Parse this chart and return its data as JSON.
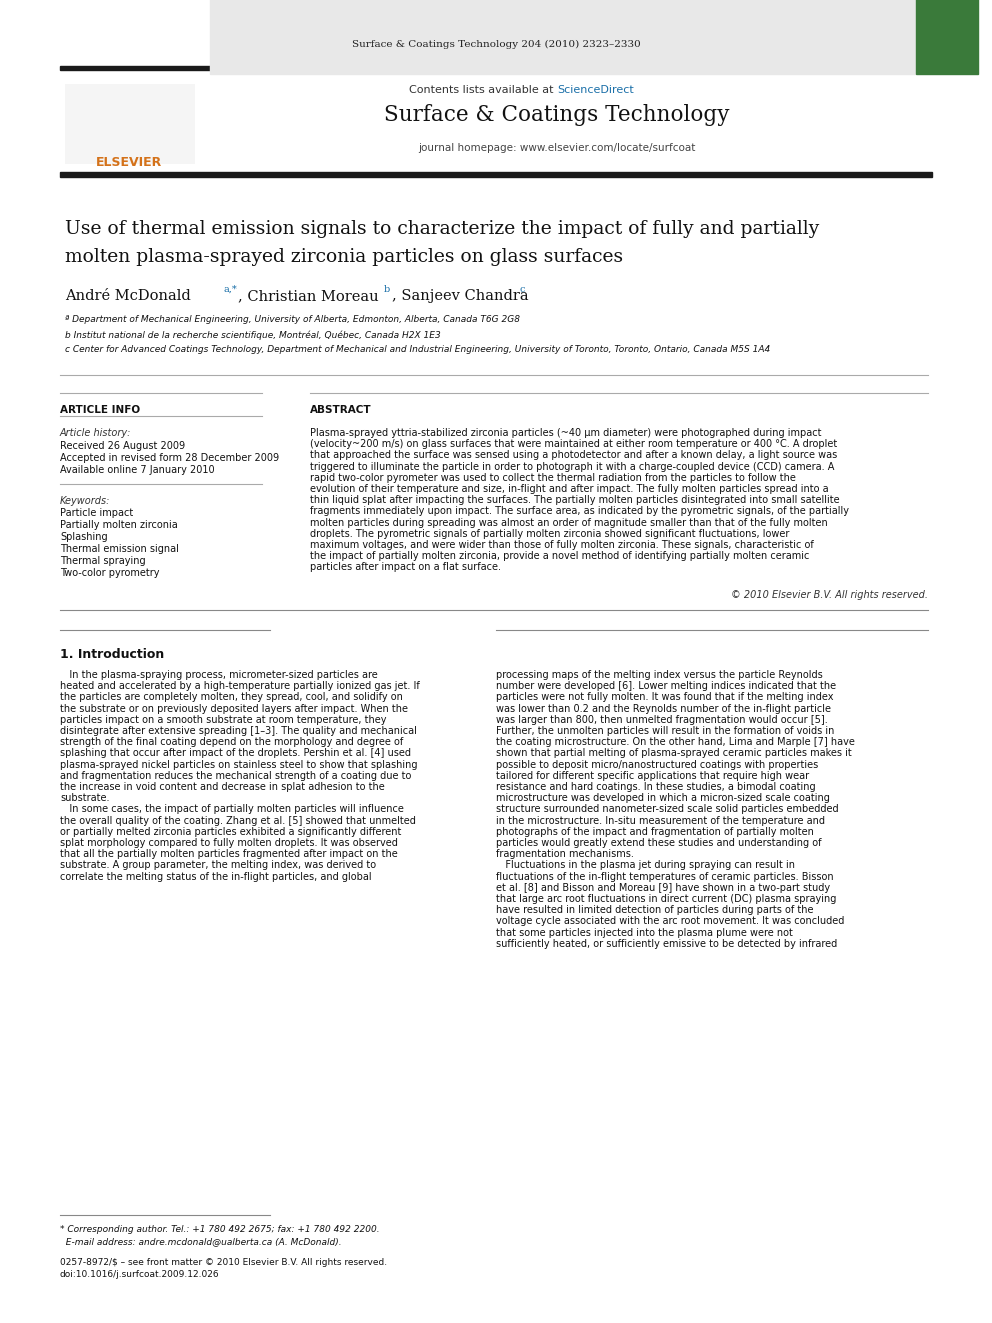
{
  "page_width": 9.92,
  "page_height": 13.23,
  "bg_color": "#ffffff",
  "header_journal_line": "Surface & Coatings Technology 204 (2010) 2323–2330",
  "journal_name": "Surface & Coatings Technology",
  "journal_homepage": "journal homepage: www.elsevier.com/locate/surfcoat",
  "contents_line": "Contents lists available at ScienceDirect",
  "header_band_color": "#e8e8e8",
  "header_band_color2": "#3a7a3a",
  "title_line1": "Use of thermal emission signals to characterize the impact of fully and partially",
  "title_line2": "molten plasma-sprayed zirconia particles on glass surfaces",
  "affil_a": "ª Department of Mechanical Engineering, University of Alberta, Edmonton, Alberta, Canada T6G 2G8",
  "affil_b": "b Institut national de la recherche scientifique, Montréal, Québec, Canada H2X 1E3",
  "affil_c": "c Center for Advanced Coatings Technology, Department of Mechanical and Industrial Engineering, University of Toronto, Toronto, Ontario, Canada M5S 1A4",
  "article_info_header": "ARTICLE INFO",
  "article_history_header": "Article history:",
  "received": "Received 26 August 2009",
  "accepted": "Accepted in revised form 28 December 2009",
  "available": "Available online 7 January 2010",
  "keywords_header": "Keywords:",
  "keywords": [
    "Particle impact",
    "Partially molten zirconia",
    "Splashing",
    "Thermal emission signal",
    "Thermal spraying",
    "Two-color pyrometry"
  ],
  "abstract_header": "ABSTRACT",
  "abstract_text": "Plasma-sprayed yttria-stabilized zirconia particles (~40 μm diameter) were photographed during impact\n(velocity~200 m/s) on glass surfaces that were maintained at either room temperature or 400 °C. A droplet\nthat approached the surface was sensed using a photodetector and after a known delay, a light source was\ntriggered to illuminate the particle in order to photograph it with a charge-coupled device (CCD) camera. A\nrapid two-color pyrometer was used to collect the thermal radiation from the particles to follow the\nevolution of their temperature and size, in-flight and after impact. The fully molten particles spread into a\nthin liquid splat after impacting the surfaces. The partially molten particles disintegrated into small satellite\nfragments immediately upon impact. The surface area, as indicated by the pyrometric signals, of the partially\nmolten particles during spreading was almost an order of magnitude smaller than that of the fully molten\ndroplets. The pyrometric signals of partially molten zirconia showed significant fluctuations, lower\nmaximum voltages, and were wider than those of fully molten zirconia. These signals, characteristic of\nthe impact of partially molten zirconia, provide a novel method of identifying partially molten ceramic\nparticles after impact on a flat surface.",
  "copyright": "© 2010 Elsevier B.V. All rights reserved.",
  "intro_header": "1. Introduction",
  "intro_col1": "   In the plasma-spraying process, micrometer-sized particles are\nheated and accelerated by a high-temperature partially ionized gas jet. If\nthe particles are completely molten, they spread, cool, and solidify on\nthe substrate or on previously deposited layers after impact. When the\nparticles impact on a smooth substrate at room temperature, they\ndisintegrate after extensive spreading [1–3]. The quality and mechanical\nstrength of the final coating depend on the morphology and degree of\nsplashing that occur after impact of the droplets. Pershin et al. [4] used\nplasma-sprayed nickel particles on stainless steel to show that splashing\nand fragmentation reduces the mechanical strength of a coating due to\nthe increase in void content and decrease in splat adhesion to the\nsubstrate.\n   In some cases, the impact of partially molten particles will influence\nthe overall quality of the coating. Zhang et al. [5] showed that unmelted\nor partially melted zirconia particles exhibited a significantly different\nsplat morphology compared to fully molten droplets. It was observed\nthat all the partially molten particles fragmented after impact on the\nsubstrate. A group parameter, the melting index, was derived to\ncorrelate the melting status of the in-flight particles, and global",
  "intro_col2": "processing maps of the melting index versus the particle Reynolds\nnumber were developed [6]. Lower melting indices indicated that the\nparticles were not fully molten. It was found that if the melting index\nwas lower than 0.2 and the Reynolds number of the in-flight particle\nwas larger than 800, then unmelted fragmentation would occur [5].\nFurther, the unmolten particles will result in the formation of voids in\nthe coating microstructure. On the other hand, Lima and Marple [7] have\nshown that partial melting of plasma-sprayed ceramic particles makes it\npossible to deposit micro/nanostructured coatings with properties\ntailored for different specific applications that require high wear\nresistance and hard coatings. In these studies, a bimodal coating\nmicrostructure was developed in which a micron-sized scale coating\nstructure surrounded nanometer-sized scale solid particles embedded\nin the microstructure. In-situ measurement of the temperature and\nphotographs of the impact and fragmentation of partially molten\nparticles would greatly extend these studies and understanding of\nfragmentation mechanisms.\n   Fluctuations in the plasma jet during spraying can result in\nfluctuations of the in-flight temperatures of ceramic particles. Bisson\net al. [8] and Bisson and Moreau [9] have shown in a two-part study\nthat large arc root fluctuations in direct current (DC) plasma spraying\nhave resulted in limited detection of particles during parts of the\nvoltage cycle associated with the arc root movement. It was concluded\nthat some particles injected into the plasma plume were not\nsufficiently heated, or sufficiently emissive to be detected by infrared",
  "footer_note_1": "* Corresponding author. Tel.: +1 780 492 2675; fax: +1 780 492 2200.",
  "footer_note_2": "  E-mail address: andre.mcdonald@ualberta.ca (A. McDonald).",
  "footer_issn_1": "0257-8972/$ – see front matter © 2010 Elsevier B.V. All rights reserved.",
  "footer_issn_2": "doi:10.1016/j.surfcoat.2009.12.026",
  "link_color": "#1a6fa8",
  "dark_band_color": "#1a1a1a"
}
